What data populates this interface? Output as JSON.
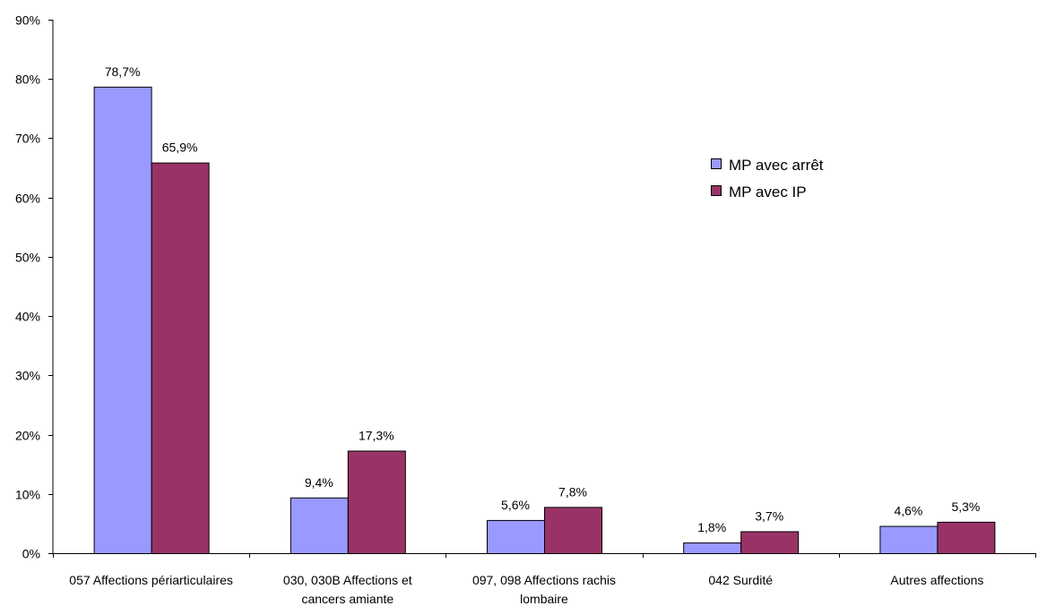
{
  "chart_data": {
    "type": "bar",
    "categories": [
      [
        "057 Affections périarticulaires"
      ],
      [
        "030, 030B Affections et",
        "cancers amiante"
      ],
      [
        "097, 098 Affections rachis",
        "lombaire"
      ],
      [
        "042 Surdité"
      ],
      [
        "Autres affections"
      ]
    ],
    "series": [
      {
        "name": "MP avec arrêt",
        "color": "#9999FF",
        "values": [
          78.7,
          9.4,
          5.6,
          1.8,
          4.6
        ],
        "labels": [
          "78,7%",
          "9,4%",
          "5,6%",
          "1,8%",
          "4,6%"
        ]
      },
      {
        "name": "MP avec IP",
        "color": "#993366",
        "values": [
          65.9,
          17.3,
          7.8,
          3.7,
          5.3
        ],
        "labels": [
          "65,9%",
          "17,3%",
          "7,8%",
          "3,7%",
          "5,3%"
        ]
      }
    ],
    "ylim": [
      0,
      90
    ],
    "yticks": [
      "0%",
      "10%",
      "20%",
      "30%",
      "40%",
      "50%",
      "60%",
      "70%",
      "80%",
      "90%"
    ],
    "grid": false,
    "legend_position": "right"
  }
}
